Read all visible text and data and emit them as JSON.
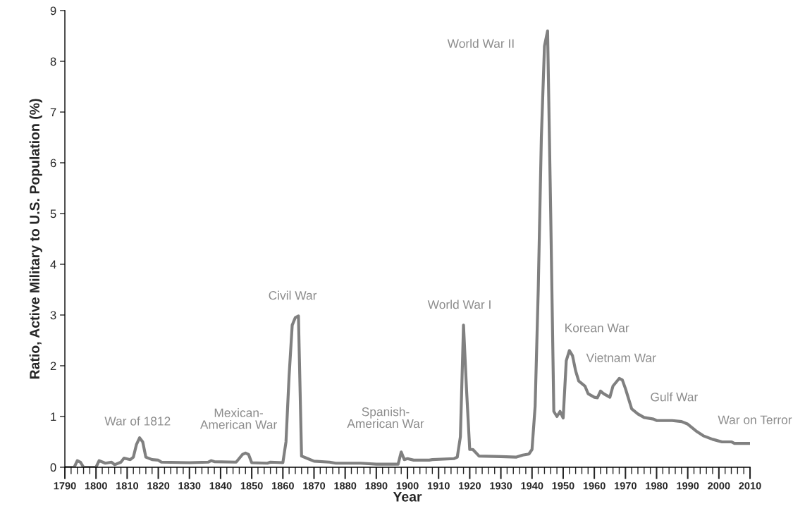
{
  "chart_data": {
    "type": "line",
    "xlabel": "Year",
    "ylabel": "Ratio, Active Military to U.S. Population (%)",
    "x": [
      1790,
      1793,
      1794,
      1795,
      1796,
      1800,
      1801,
      1803,
      1805,
      1806,
      1808,
      1809,
      1811,
      1812,
      1813,
      1814,
      1815,
      1816,
      1818,
      1820,
      1821,
      1830,
      1836,
      1837,
      1838,
      1845,
      1847,
      1848,
      1849,
      1850,
      1855,
      1856,
      1860,
      1861,
      1862,
      1863,
      1864,
      1865,
      1866,
      1868,
      1870,
      1875,
      1877,
      1885,
      1890,
      1897,
      1898,
      1899,
      1900,
      1902,
      1907,
      1908,
      1915,
      1916,
      1917,
      1918,
      1919,
      1920,
      1921,
      1923,
      1930,
      1935,
      1937,
      1939,
      1940,
      1941,
      1942,
      1943,
      1944,
      1945,
      1946,
      1947,
      1948,
      1949,
      1950,
      1951,
      1952,
      1953,
      1954,
      1955,
      1957,
      1958,
      1960,
      1961,
      1962,
      1963,
      1965,
      1966,
      1968,
      1969,
      1970,
      1972,
      1974,
      1976,
      1979,
      1980,
      1985,
      1988,
      1990,
      1993,
      1995,
      1998,
      2001,
      2004,
      2005,
      2010
    ],
    "series": [
      {
        "color": "#808080",
        "values": [
          0,
          0,
          0.13,
          0.1,
          0,
          0,
          0.13,
          0.08,
          0.1,
          0.05,
          0.1,
          0.18,
          0.15,
          0.2,
          0.45,
          0.58,
          0.5,
          0.2,
          0.15,
          0.14,
          0.1,
          0.09,
          0.1,
          0.13,
          0.11,
          0.1,
          0.25,
          0.28,
          0.25,
          0.09,
          0.08,
          0.1,
          0.09,
          0.5,
          1.8,
          2.8,
          2.95,
          2.98,
          0.22,
          0.17,
          0.12,
          0.1,
          0.08,
          0.08,
          0.06,
          0.06,
          0.3,
          0.15,
          0.17,
          0.14,
          0.14,
          0.15,
          0.17,
          0.2,
          0.6,
          2.8,
          1.5,
          0.35,
          0.35,
          0.22,
          0.21,
          0.2,
          0.24,
          0.26,
          0.35,
          1.2,
          3.5,
          6.5,
          8.3,
          8.6,
          5.0,
          1.1,
          1.0,
          1.1,
          0.97,
          2.1,
          2.3,
          2.2,
          1.9,
          1.7,
          1.6,
          1.45,
          1.38,
          1.37,
          1.5,
          1.45,
          1.38,
          1.6,
          1.75,
          1.72,
          1.55,
          1.15,
          1.05,
          0.98,
          0.95,
          0.92,
          0.92,
          0.9,
          0.85,
          0.7,
          0.62,
          0.55,
          0.5,
          0.5,
          0.47,
          0.47
        ]
      }
    ],
    "xlim": [
      1790,
      2010
    ],
    "xticks": [
      1790,
      {
        "value": 1792,
        "label": null
      },
      {
        "value": 1794,
        "label": null
      },
      {
        "value": 1796,
        "label": null
      },
      {
        "value": 1798,
        "label": null
      },
      1800,
      {
        "value": 1802,
        "label": null
      },
      {
        "value": 1804,
        "label": null
      },
      {
        "value": 1806,
        "label": null
      },
      {
        "value": 1808,
        "label": null
      },
      1810,
      {
        "value": 1812,
        "label": null
      },
      {
        "value": 1814,
        "label": null
      },
      {
        "value": 1816,
        "label": null
      },
      {
        "value": 1818,
        "label": null
      },
      1820,
      {
        "value": 1822,
        "label": null
      },
      {
        "value": 1824,
        "label": null
      },
      {
        "value": 1826,
        "label": null
      },
      {
        "value": 1828,
        "label": null
      },
      1830,
      {
        "value": 1832,
        "label": null
      },
      {
        "value": 1834,
        "label": null
      },
      {
        "value": 1836,
        "label": null
      },
      {
        "value": 1838,
        "label": null
      },
      1840,
      {
        "value": 1842,
        "label": null
      },
      {
        "value": 1844,
        "label": null
      },
      {
        "value": 1846,
        "label": null
      },
      {
        "value": 1848,
        "label": null
      },
      1850,
      {
        "value": 1852,
        "label": null
      },
      {
        "value": 1854,
        "label": null
      },
      {
        "value": 1856,
        "label": null
      },
      {
        "value": 1858,
        "label": null
      },
      1860,
      {
        "value": 1862,
        "label": null
      },
      {
        "value": 1864,
        "label": null
      },
      {
        "value": 1866,
        "label": null
      },
      {
        "value": 1868,
        "label": null
      },
      1870,
      {
        "value": 1872,
        "label": null
      },
      {
        "value": 1874,
        "label": null
      },
      {
        "value": 1876,
        "label": null
      },
      {
        "value": 1878,
        "label": null
      },
      1880,
      {
        "value": 1882,
        "label": null
      },
      {
        "value": 1884,
        "label": null
      },
      {
        "value": 1886,
        "label": null
      },
      {
        "value": 1888,
        "label": null
      },
      1890,
      {
        "value": 1892,
        "label": null
      },
      {
        "value": 1894,
        "label": null
      },
      {
        "value": 1896,
        "label": null
      },
      {
        "value": 1898,
        "label": null
      },
      1900,
      {
        "value": 1902,
        "label": null
      },
      {
        "value": 1904,
        "label": null
      },
      {
        "value": 1906,
        "label": null
      },
      {
        "value": 1908,
        "label": null
      },
      1910,
      {
        "value": 1912,
        "label": null
      },
      {
        "value": 1914,
        "label": null
      },
      {
        "value": 1916,
        "label": null
      },
      {
        "value": 1918,
        "label": null
      },
      1920,
      {
        "value": 1922,
        "label": null
      },
      {
        "value": 1924,
        "label": null
      },
      {
        "value": 1926,
        "label": null
      },
      {
        "value": 1928,
        "label": null
      },
      1930,
      {
        "value": 1932,
        "label": null
      },
      {
        "value": 1934,
        "label": null
      },
      {
        "value": 1936,
        "label": null
      },
      {
        "value": 1938,
        "label": null
      },
      1940,
      {
        "value": 1942,
        "label": null
      },
      {
        "value": 1944,
        "label": null
      },
      {
        "value": 1946,
        "label": null
      },
      {
        "value": 1948,
        "label": null
      },
      1950,
      {
        "value": 1952,
        "label": null
      },
      {
        "value": 1954,
        "label": null
      },
      {
        "value": 1956,
        "label": null
      },
      {
        "value": 1958,
        "label": null
      },
      1960,
      {
        "value": 1962,
        "label": null
      },
      {
        "value": 1964,
        "label": null
      },
      {
        "value": 1966,
        "label": null
      },
      {
        "value": 1968,
        "label": null
      },
      1970,
      {
        "value": 1972,
        "label": null
      },
      {
        "value": 1974,
        "label": null
      },
      {
        "value": 1976,
        "label": null
      },
      {
        "value": 1978,
        "label": null
      },
      1980,
      {
        "value": 1982,
        "label": null
      },
      {
        "value": 1984,
        "label": null
      },
      {
        "value": 1986,
        "label": null
      },
      {
        "value": 1988,
        "label": null
      },
      1990,
      {
        "value": 1992,
        "label": null
      },
      {
        "value": 1994,
        "label": null
      },
      {
        "value": 1996,
        "label": null
      },
      {
        "value": 1998,
        "label": null
      },
      2000,
      {
        "value": 2002,
        "label": null
      },
      {
        "value": 2004,
        "label": null
      },
      {
        "value": 2006,
        "label": null
      },
      {
        "value": 2008,
        "label": null
      },
      2010
    ],
    "ylim": [
      0,
      9
    ],
    "yticks": [
      0,
      1,
      2,
      3,
      4,
      5,
      6,
      7,
      8,
      9
    ],
    "grid": false,
    "legend": false,
    "marker": "none",
    "line_style": "solid",
    "annotations": [
      {
        "text": "War of 1812",
        "x": 1814,
        "y": 0.58
      },
      {
        "text": "Mexican-\nAmerican War",
        "x": 1848,
        "y": 0.28
      },
      {
        "text": "Civil War",
        "x": 1865,
        "y": 2.98
      },
      {
        "text": "Spanish-\nAmerican War",
        "x": 1898,
        "y": 0.3
      },
      {
        "text": "World War I",
        "x": 1918,
        "y": 2.8
      },
      {
        "text": "World War II",
        "x": 1945,
        "y": 8.6
      },
      {
        "text": "Korean War",
        "x": 1952,
        "y": 2.3
      },
      {
        "text": "Vietnam War",
        "x": 1968,
        "y": 1.75
      },
      {
        "text": "Gulf War",
        "x": 1985,
        "y": 0.92
      },
      {
        "text": "War on Terror",
        "x": 2010,
        "y": 0.47
      }
    ]
  }
}
